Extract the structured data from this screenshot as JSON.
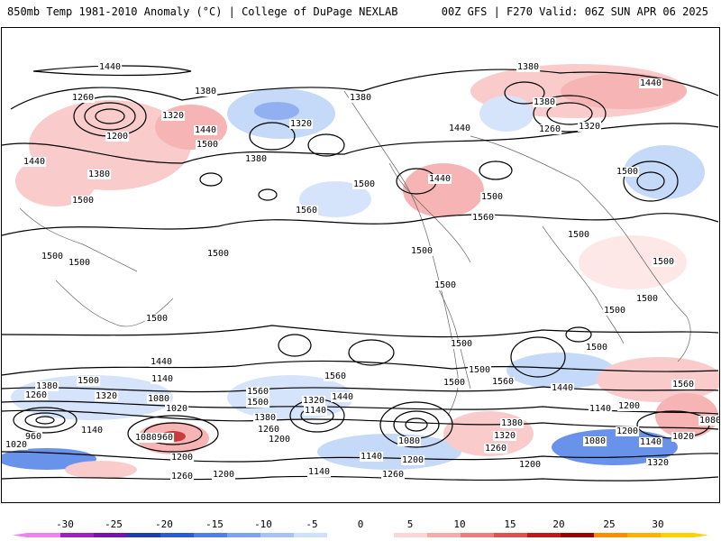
{
  "header": {
    "title": "850mb Temp 1981-2010 Anomaly (°C) | College of DuPage NEXLAB",
    "run_info": "00Z GFS | F270 Valid: 06Z SUN APR 06 2025"
  },
  "colorbar": {
    "tick_labels": [
      "-30",
      "-25",
      "-20",
      "-15",
      "-10",
      "-5",
      "0",
      "5",
      "10",
      "15",
      "20",
      "25",
      "30"
    ],
    "colors": [
      "#ee82ee",
      "#a020c0",
      "#7a10b0",
      "#1a3fb0",
      "#2a5cd8",
      "#4f7fe8",
      "#7fa3ef",
      "#a8c3f3",
      "#cfe0fb",
      "#ffffff",
      "#ffffff",
      "#fcd5d5",
      "#f7aaaa",
      "#ee7e7e",
      "#e05050",
      "#c21818",
      "#9c0000",
      "#ff8c00",
      "#ffb000",
      "#ffd000"
    ]
  },
  "contour_labels": [
    {
      "text": "1440"
    },
    {
      "text": "1380"
    },
    {
      "text": "1380"
    },
    {
      "text": "1440"
    },
    {
      "text": "1260"
    },
    {
      "text": "1320"
    },
    {
      "text": "1200"
    },
    {
      "text": "1440"
    },
    {
      "text": "1500"
    },
    {
      "text": "1320"
    },
    {
      "text": "1380"
    },
    {
      "text": "1380"
    },
    {
      "text": "1440"
    },
    {
      "text": "1380"
    },
    {
      "text": "1440"
    },
    {
      "text": "1500"
    },
    {
      "text": "1560"
    },
    {
      "text": "1500"
    },
    {
      "text": "1440"
    },
    {
      "text": "1500"
    },
    {
      "text": "1560"
    },
    {
      "text": "1500"
    },
    {
      "text": "1500"
    },
    {
      "text": "1500"
    },
    {
      "text": "1500"
    },
    {
      "text": "1380"
    },
    {
      "text": "1260"
    },
    {
      "text": "1320"
    },
    {
      "text": "1500"
    },
    {
      "text": "1500"
    },
    {
      "text": "1500"
    },
    {
      "text": "1500"
    },
    {
      "text": "1500"
    },
    {
      "text": "1500"
    },
    {
      "text": "1500"
    },
    {
      "text": "1500"
    },
    {
      "text": "1500"
    },
    {
      "text": "1500"
    },
    {
      "text": "1440"
    },
    {
      "text": "1380"
    },
    {
      "text": "1320"
    },
    {
      "text": "1260"
    },
    {
      "text": "1500"
    },
    {
      "text": "1140"
    },
    {
      "text": "1080"
    },
    {
      "text": "1020"
    },
    {
      "text": "960"
    },
    {
      "text": "1020"
    },
    {
      "text": "1140"
    },
    {
      "text": "1080"
    },
    {
      "text": "960"
    },
    {
      "text": "1200"
    },
    {
      "text": "1260"
    },
    {
      "text": "1200"
    },
    {
      "text": "1560"
    },
    {
      "text": "1560"
    },
    {
      "text": "1500"
    },
    {
      "text": "1440"
    },
    {
      "text": "1320"
    },
    {
      "text": "1140"
    },
    {
      "text": "1380"
    },
    {
      "text": "1260"
    },
    {
      "text": "1200"
    },
    {
      "text": "1140"
    },
    {
      "text": "1200"
    },
    {
      "text": "1260"
    },
    {
      "text": "1140"
    },
    {
      "text": "1080"
    },
    {
      "text": "1560"
    },
    {
      "text": "1440"
    },
    {
      "text": "1380"
    },
    {
      "text": "1320"
    },
    {
      "text": "1260"
    },
    {
      "text": "1200"
    },
    {
      "text": "1500"
    },
    {
      "text": "1560"
    },
    {
      "text": "1200"
    },
    {
      "text": "1140"
    },
    {
      "text": "1080"
    },
    {
      "text": "1020"
    },
    {
      "text": "1140"
    },
    {
      "text": "1320"
    },
    {
      "text": "1200"
    },
    {
      "text": "1080"
    }
  ]
}
